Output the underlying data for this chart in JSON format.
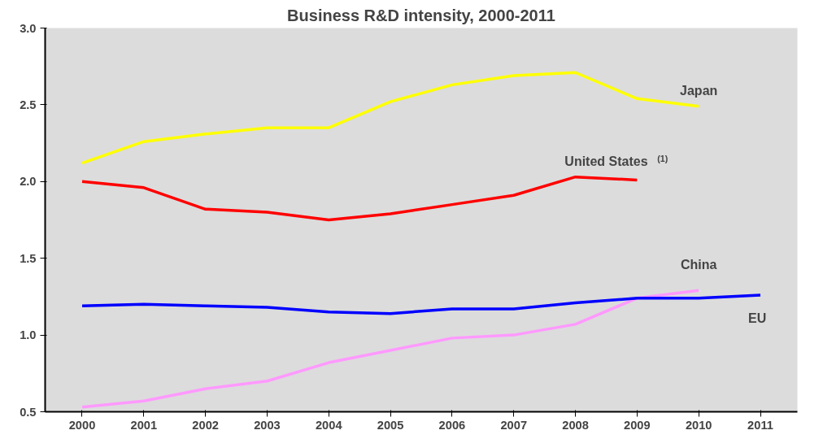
{
  "chart_data": {
    "type": "line",
    "title": "Business R&D intensity, 2000-2011",
    "categories": [
      "2000",
      "2001",
      "2002",
      "2003",
      "2004",
      "2005",
      "2006",
      "2007",
      "2008",
      "2009",
      "2010",
      "2011"
    ],
    "series": [
      {
        "name": "Japan",
        "color": "#ffff00",
        "values": [
          2.12,
          2.26,
          2.31,
          2.35,
          2.35,
          2.52,
          2.63,
          2.69,
          2.71,
          2.54,
          2.49,
          null
        ]
      },
      {
        "name": "United States$^{(1)}$",
        "color": "#ff0000",
        "values": [
          2.0,
          1.96,
          1.82,
          1.8,
          1.75,
          1.79,
          1.85,
          1.91,
          2.03,
          2.01,
          null,
          null
        ]
      },
      {
        "name": "China",
        "color": "#ff99ff",
        "values": [
          0.53,
          0.57,
          0.65,
          0.7,
          0.82,
          0.9,
          0.98,
          1.0,
          1.07,
          1.24,
          1.29,
          null
        ]
      },
      {
        "name": "EU",
        "color": "#0000ff",
        "values": [
          1.19,
          1.2,
          1.19,
          1.18,
          1.15,
          1.14,
          1.17,
          1.17,
          1.21,
          1.24,
          1.24,
          1.26
        ]
      }
    ],
    "ylim": [
      0.5,
      3.0
    ],
    "yticks": [
      {
        "value": 0.5,
        "label": "0.5"
      },
      {
        "value": 1.0,
        "label": "1.0"
      },
      {
        "value": 1.5,
        "label": "1.5"
      },
      {
        "value": 2.0,
        "label": "2.0"
      },
      {
        "value": 2.5,
        "label": "2.5"
      },
      {
        "value": 3.0,
        "label": "3.0"
      }
    ],
    "grid": false,
    "marker": "none",
    "line_style": "solid"
  }
}
